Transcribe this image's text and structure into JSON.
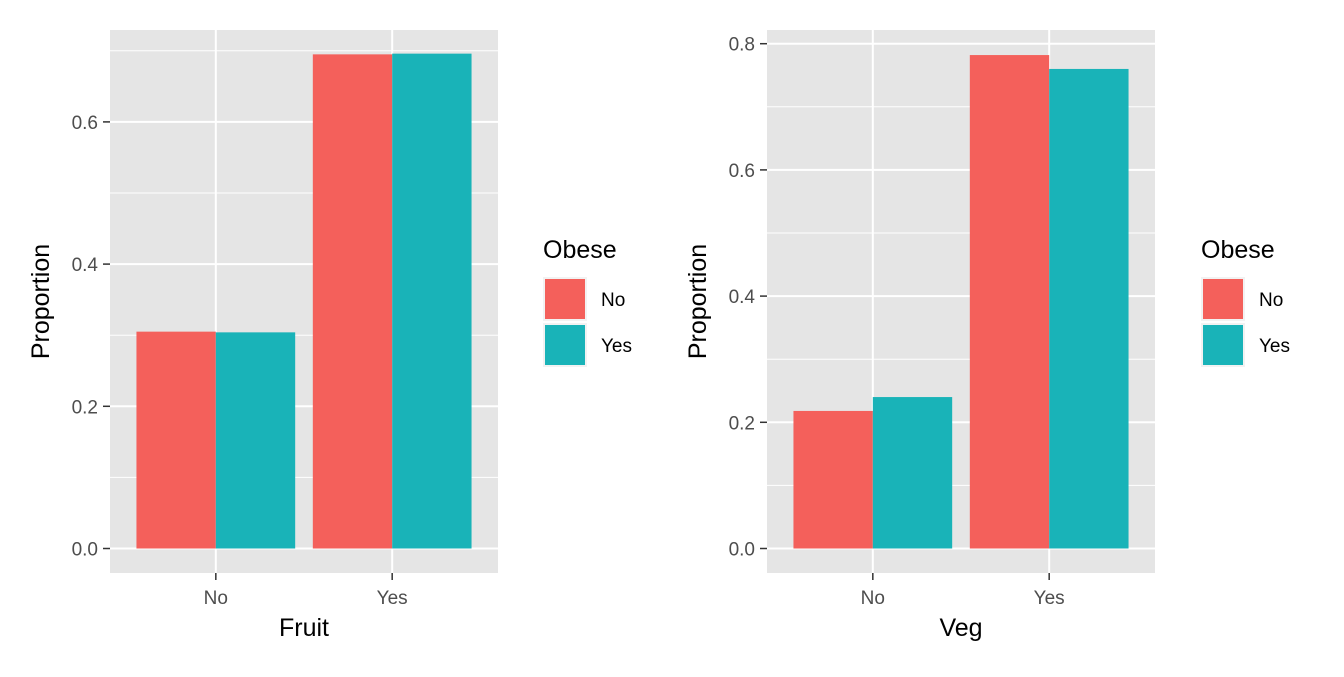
{
  "colors": {
    "panel_bg": "#e5e5e5",
    "grid": "#ffffff",
    "tick": "#333333",
    "series_no": "#f4605b",
    "series_yes": "#19b3b8"
  },
  "chart_data": [
    {
      "type": "bar",
      "xlabel": "Fruit",
      "ylabel": "Proportion",
      "categories": [
        "No",
        "Yes"
      ],
      "series": [
        {
          "name": "No",
          "values": [
            0.305,
            0.695
          ]
        },
        {
          "name": "Yes",
          "values": [
            0.304,
            0.696
          ]
        }
      ],
      "ylim": [
        0,
        0.73
      ],
      "yticks": [
        0.0,
        0.2,
        0.4,
        0.6
      ],
      "ytick_labels": [
        "0.0",
        "0.2",
        "0.4",
        "0.6"
      ],
      "grid": true,
      "legend": {
        "title": "Obese",
        "placement": "right",
        "labels": [
          "No",
          "Yes"
        ]
      }
    },
    {
      "type": "bar",
      "xlabel": "Veg",
      "ylabel": "Proportion",
      "categories": [
        "No",
        "Yes"
      ],
      "series": [
        {
          "name": "No",
          "values": [
            0.218,
            0.782
          ]
        },
        {
          "name": "Yes",
          "values": [
            0.24,
            0.76
          ]
        }
      ],
      "ylim": [
        0,
        0.82
      ],
      "yticks": [
        0.0,
        0.2,
        0.4,
        0.6,
        0.8
      ],
      "ytick_labels": [
        "0.0",
        "0.2",
        "0.4",
        "0.6",
        "0.8"
      ],
      "grid": true,
      "legend": {
        "title": "Obese",
        "placement": "right",
        "labels": [
          "No",
          "Yes"
        ]
      }
    }
  ]
}
